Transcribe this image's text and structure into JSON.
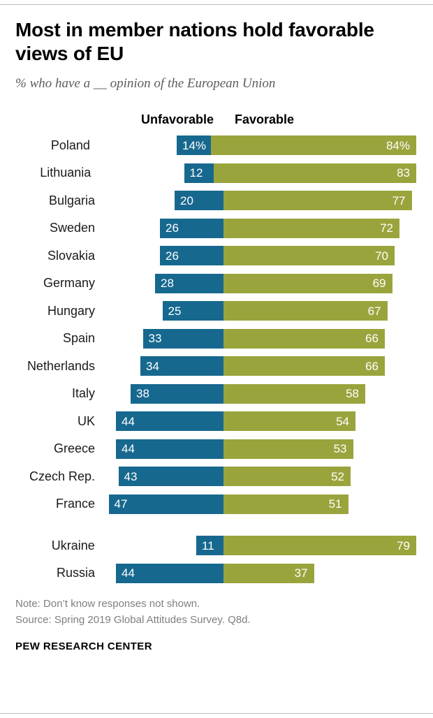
{
  "meta": {
    "title": "Most in member nations hold favorable views of EU",
    "subtitle": "% who have a __ opinion of the European Union",
    "note": "Note: Don’t know responses not shown.",
    "source": "Source: Spring 2019 Global Attitudes Survey. Q8d.",
    "brand": "PEW RESEARCH CENTER"
  },
  "chart_data": {
    "type": "bar",
    "orientation": "horizontal-diverging",
    "title": "Most in member nations hold favorable views of EU",
    "subtitle": "% who have a __ opinion of the European Union",
    "legend": [
      "Unfavorable",
      "Favorable"
    ],
    "legend_position": "top",
    "xlim": [
      0,
      100
    ],
    "unit": "percent",
    "colors": {
      "unfavorable": "#17688f",
      "favorable": "#9aa43c"
    },
    "rows": [
      {
        "category": "Poland",
        "unfavorable": 14,
        "favorable": 84,
        "unfavorable_label": "14%",
        "favorable_label": "84%"
      },
      {
        "category": "Lithuania",
        "unfavorable": 12,
        "favorable": 83
      },
      {
        "category": "Bulgaria",
        "unfavorable": 20,
        "favorable": 77
      },
      {
        "category": "Sweden",
        "unfavorable": 26,
        "favorable": 72
      },
      {
        "category": "Slovakia",
        "unfavorable": 26,
        "favorable": 70
      },
      {
        "category": "Germany",
        "unfavorable": 28,
        "favorable": 69
      },
      {
        "category": "Hungary",
        "unfavorable": 25,
        "favorable": 67
      },
      {
        "category": "Spain",
        "unfavorable": 33,
        "favorable": 66
      },
      {
        "category": "Netherlands",
        "unfavorable": 34,
        "favorable": 66
      },
      {
        "category": "Italy",
        "unfavorable": 38,
        "favorable": 58
      },
      {
        "category": "UK",
        "unfavorable": 44,
        "favorable": 54
      },
      {
        "category": "Greece",
        "unfavorable": 44,
        "favorable": 53
      },
      {
        "category": "Czech Rep.",
        "unfavorable": 43,
        "favorable": 52
      },
      {
        "category": "France",
        "unfavorable": 47,
        "favorable": 51
      },
      {
        "category": "Ukraine",
        "unfavorable": 11,
        "favorable": 79,
        "gap_before": true
      },
      {
        "category": "Russia",
        "unfavorable": 44,
        "favorable": 37
      }
    ]
  }
}
